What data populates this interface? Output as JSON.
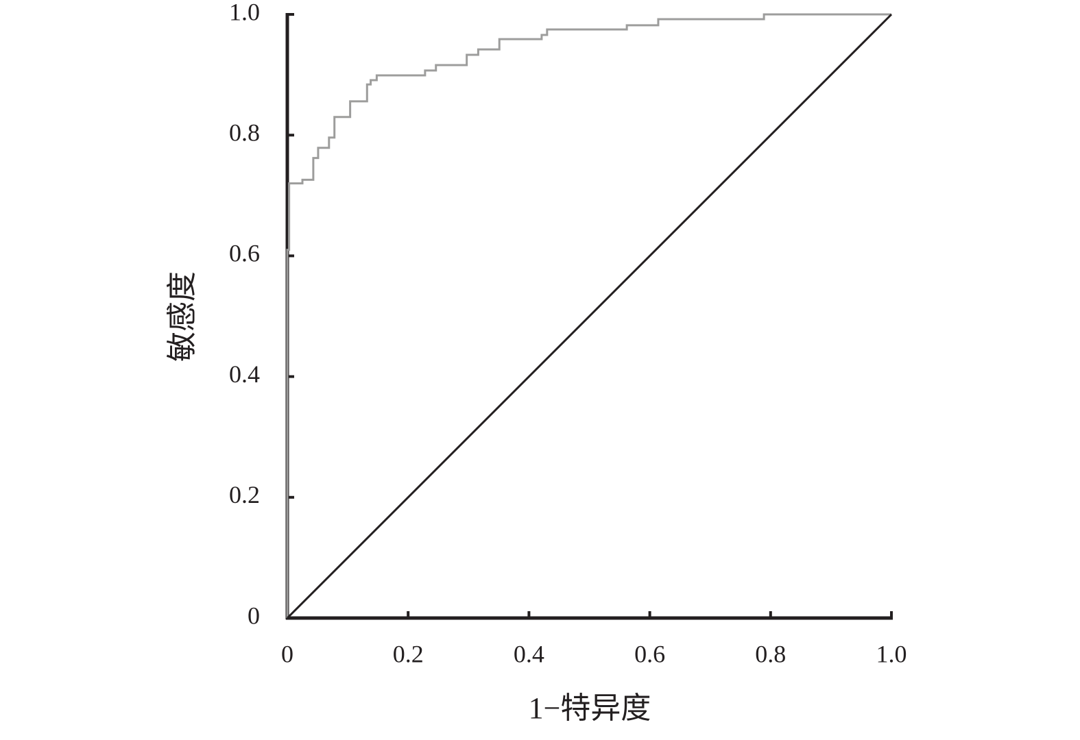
{
  "chart_data": {
    "type": "line",
    "xlabel": "1−特异度",
    "ylabel": "敏感度",
    "xlim": [
      0,
      1
    ],
    "ylim": [
      0,
      1
    ],
    "xticks": [
      0,
      0.2,
      0.4,
      0.6,
      0.8,
      {
        "value": 1,
        "label": "1.0"
      }
    ],
    "yticks": [
      0,
      0.2,
      0.4,
      0.6,
      0.8,
      {
        "value": 1,
        "label": "1.0"
      }
    ],
    "grid": false,
    "series": [
      {
        "color": "#9d9d9c",
        "x": [
          0,
          0,
          0.003,
          0.003,
          0.025,
          0.025,
          0.043,
          0.043,
          0.051,
          0.051,
          0.069,
          0.069,
          0.078,
          0.078,
          0.104,
          0.104,
          0.132,
          0.132,
          0.138,
          0.138,
          0.148,
          0.148,
          0.228,
          0.228,
          0.246,
          0.246,
          0.297,
          0.297,
          0.316,
          0.316,
          0.351,
          0.351,
          0.421,
          0.421,
          0.43,
          0.43,
          0.562,
          0.562,
          0.614,
          0.614,
          0.789,
          0.789,
          1
        ],
        "values": [
          0,
          0.61,
          0.61,
          0.72,
          0.72,
          0.726,
          0.726,
          0.762,
          0.762,
          0.779,
          0.779,
          0.796,
          0.796,
          0.83,
          0.83,
          0.856,
          0.856,
          0.884,
          0.884,
          0.891,
          0.891,
          0.899,
          0.899,
          0.907,
          0.907,
          0.916,
          0.916,
          0.933,
          0.933,
          0.942,
          0.942,
          0.959,
          0.959,
          0.966,
          0.966,
          0.975,
          0.975,
          0.982,
          0.982,
          0.992,
          0.992,
          1,
          1
        ]
      },
      {
        "color": "#231f20",
        "x": [
          0,
          1
        ],
        "values": [
          0,
          1
        ]
      }
    ]
  }
}
